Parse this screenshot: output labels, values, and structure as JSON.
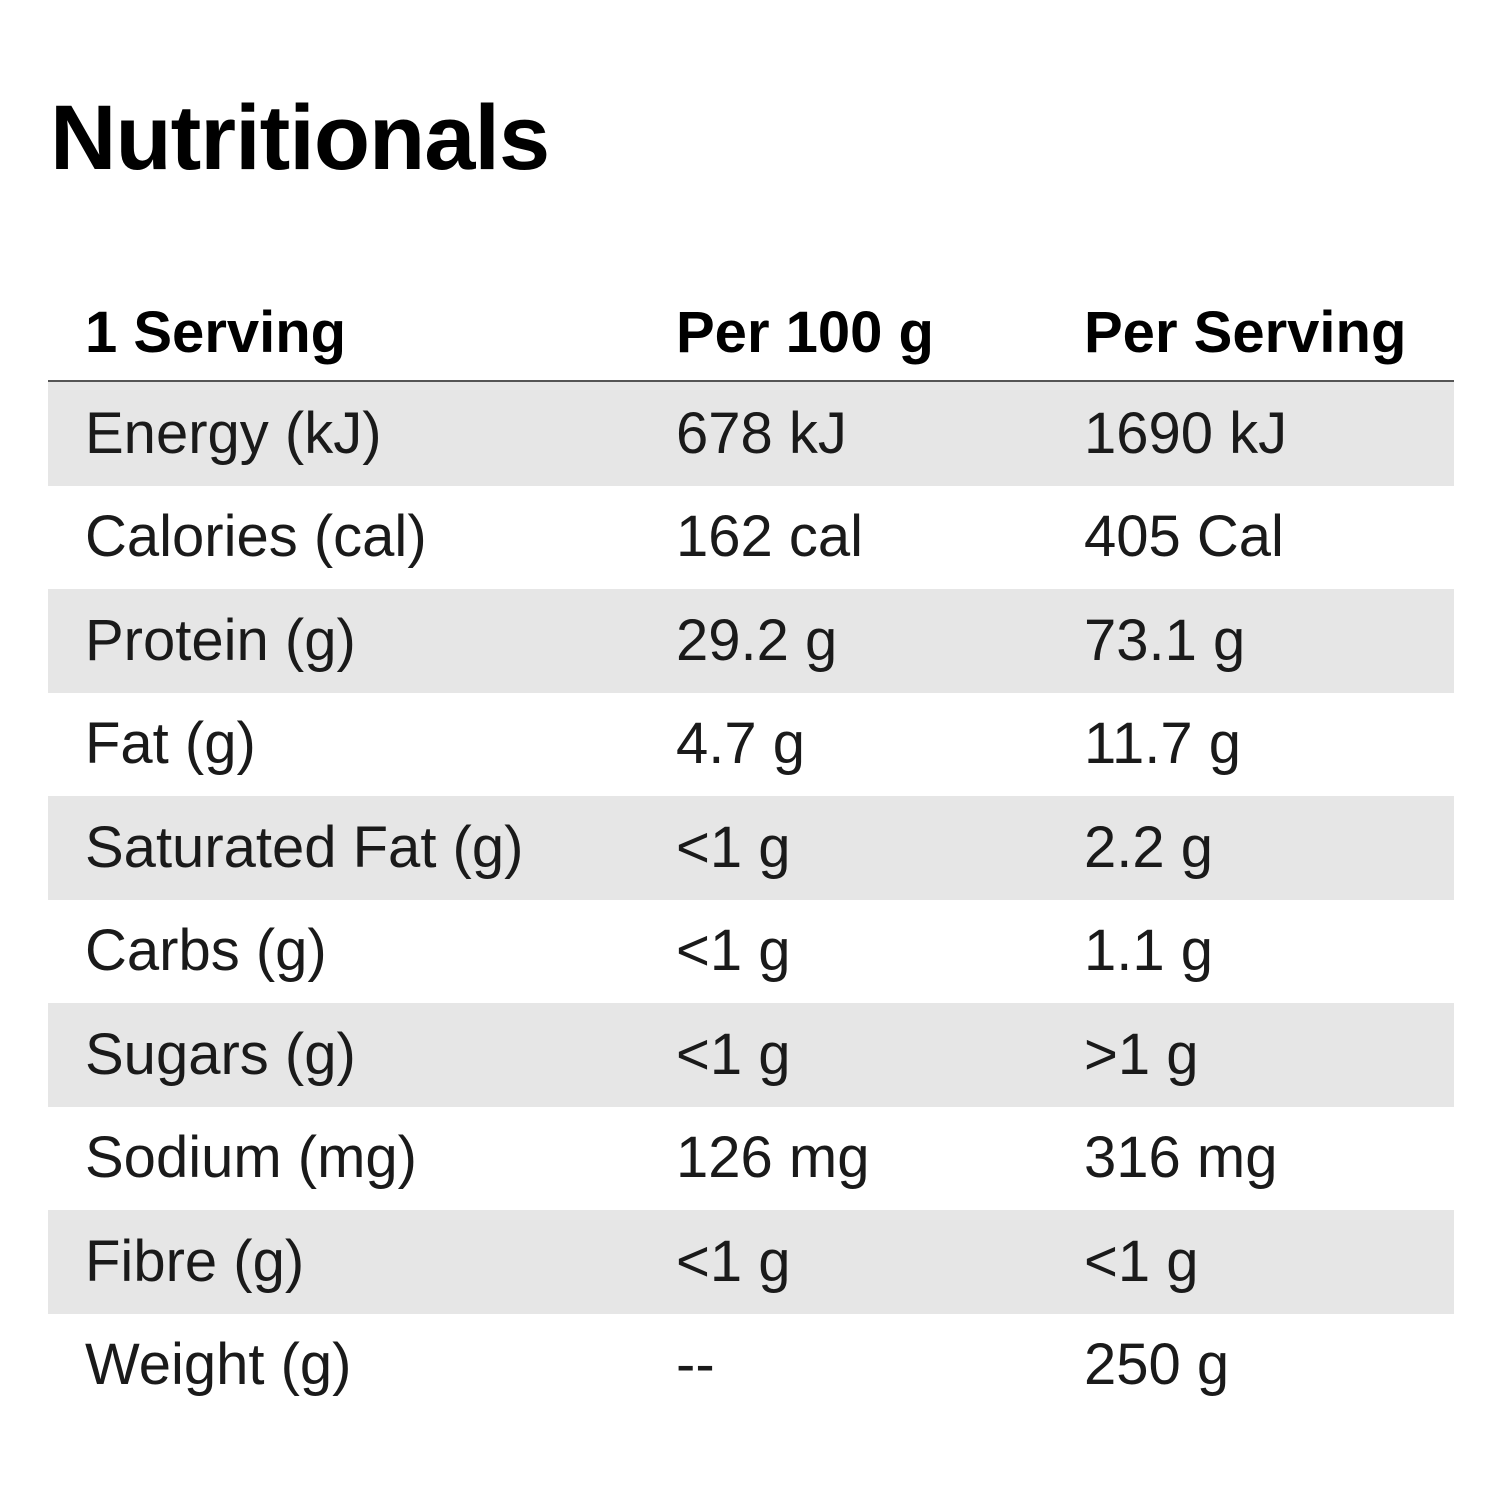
{
  "title": "Nutritionals",
  "table": {
    "headers": [
      "1 Serving",
      "Per 100 g",
      "Per Serving"
    ],
    "rows": [
      {
        "label": "Energy (kJ)",
        "per100": "678 kJ",
        "perServing": "1690 kJ"
      },
      {
        "label": "Calories (cal)",
        "per100": "162 cal",
        "perServing": "405 Cal"
      },
      {
        "label": "Protein (g)",
        "per100": "29.2 g",
        "perServing": "73.1 g"
      },
      {
        "label": "Fat (g)",
        "per100": "4.7 g",
        "perServing": "11.7 g"
      },
      {
        "label": "Saturated Fat (g)",
        "per100": "<1 g",
        "perServing": "2.2 g"
      },
      {
        "label": "Carbs (g)",
        "per100": "<1 g",
        "perServing": "1.1 g"
      },
      {
        "label": "Sugars (g)",
        "per100": "<1 g",
        "perServing": ">1 g"
      },
      {
        "label": "Sodium (mg)",
        "per100": "126 mg",
        "perServing": "316 mg"
      },
      {
        "label": "Fibre (g)",
        "per100": "<1 g",
        "perServing": "<1 g"
      },
      {
        "label": "Weight (g)",
        "per100": "--",
        "perServing": "250 g"
      }
    ]
  },
  "colors": {
    "shaded_row": "#e6e6e6",
    "header_rule": "#555555",
    "text": "#111111"
  }
}
